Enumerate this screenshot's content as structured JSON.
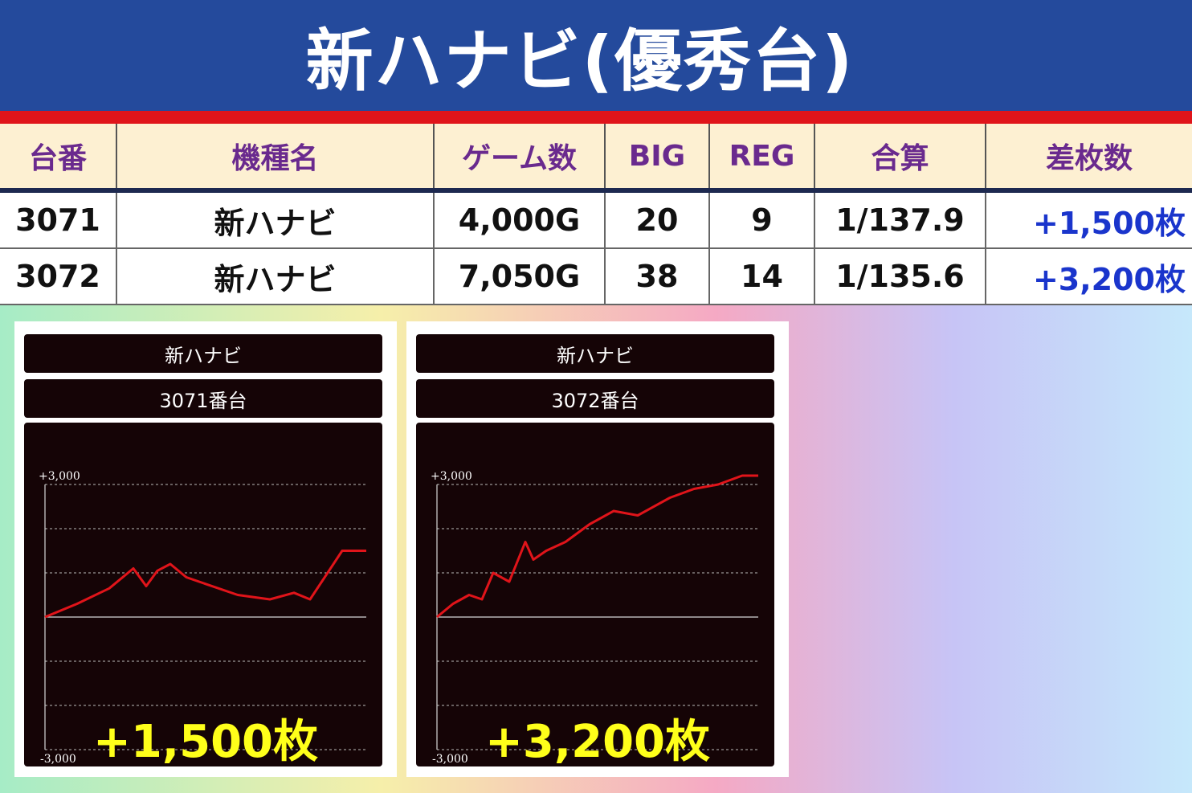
{
  "header": {
    "title": "新ハナビ(優秀台)"
  },
  "table": {
    "columns": [
      "台番",
      "機種名",
      "ゲーム数",
      "BIG",
      "REG",
      "合算",
      "差枚数"
    ],
    "rows": [
      [
        "3071",
        "新ハナビ",
        "4,000G",
        "20",
        "9",
        "1/137.9",
        "+1,500枚"
      ],
      [
        "3072",
        "新ハナビ",
        "7,050G",
        "38",
        "14",
        "1/135.6",
        "+3,200枚"
      ]
    ]
  },
  "colors": {
    "title_bg": "#244a9c",
    "stripe": "#e0141a",
    "header_text": "#6a2a8e",
    "diff_text": "#1a35cc",
    "graph_line": "#e0141a",
    "big_diff": "#ffff1a"
  },
  "chart_data": [
    {
      "type": "line",
      "title": "新ハナビ",
      "subtitle": "3071番台",
      "ylim": [
        -3000,
        3000
      ],
      "y_tick_labels": [
        "+3,000",
        "-3,000"
      ],
      "x": [
        0,
        20,
        40,
        55,
        63,
        70,
        78,
        88,
        100,
        120,
        140,
        155,
        165,
        175,
        185,
        200
      ],
      "values": [
        0,
        300,
        650,
        1100,
        700,
        1050,
        1200,
        900,
        750,
        500,
        400,
        550,
        400,
        950,
        1500,
        1500
      ],
      "annotation": "+1,500枚"
    },
    {
      "type": "line",
      "title": "新ハナビ",
      "subtitle": "3072番台",
      "ylim": [
        -3000,
        3000
      ],
      "y_tick_labels": [
        "+3,000",
        "-3,000"
      ],
      "x": [
        0,
        10,
        20,
        28,
        35,
        45,
        55,
        60,
        68,
        80,
        95,
        110,
        125,
        145,
        160,
        175,
        190,
        200
      ],
      "values": [
        0,
        300,
        500,
        400,
        1000,
        800,
        1700,
        1300,
        1500,
        1700,
        2100,
        2400,
        2300,
        2700,
        2900,
        3000,
        3200,
        3200
      ],
      "annotation": "+3,200枚"
    }
  ]
}
